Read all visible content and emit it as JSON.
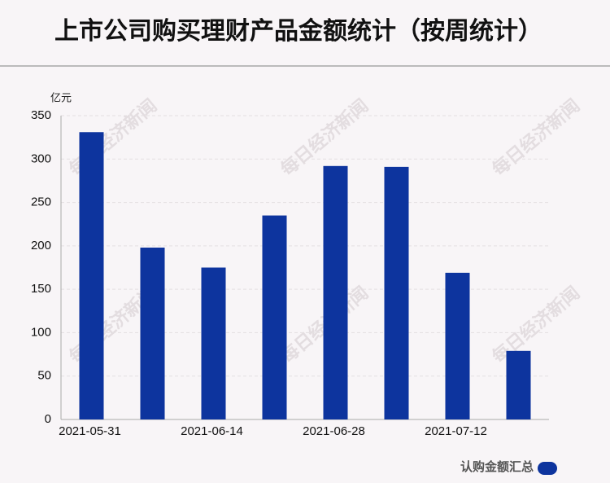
{
  "chart_data": {
    "type": "bar",
    "title": "上市公司购买理财产品金额统计（按周统计）",
    "y_label": "亿元",
    "watermark": "每日经济新闻",
    "categories": [
      "2021-05-31",
      null,
      "2021-06-14",
      null,
      "2021-06-28",
      null,
      "2021-07-12",
      null
    ],
    "series": [
      {
        "name": "认购金额汇总",
        "color": "#0d349e",
        "values": [
          331,
          198,
          175,
          235,
          292,
          291,
          169,
          79
        ]
      }
    ],
    "ylim": [
      0,
      350
    ],
    "yticks": [
      0,
      50,
      100,
      150,
      200,
      250,
      300,
      350
    ],
    "grid": true
  }
}
